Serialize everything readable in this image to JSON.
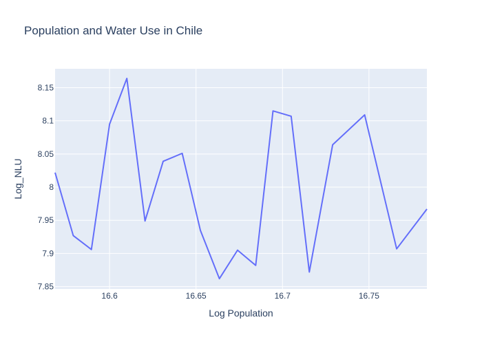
{
  "chart_data": {
    "type": "line",
    "title": "Population and Water Use in Chile",
    "xlabel": "Log Population",
    "ylabel": "Log_NLU",
    "xlim": [
      16.5685,
      16.7835
    ],
    "ylim": [
      7.8465,
      8.1785
    ],
    "x_ticks": [
      16.6,
      16.65,
      16.7,
      16.75
    ],
    "x_tick_labels": [
      "16.6",
      "16.65",
      "16.7",
      "16.75"
    ],
    "y_ticks": [
      7.85,
      7.9,
      7.95,
      8.0,
      8.05,
      8.1,
      8.15
    ],
    "y_tick_labels": [
      "7.85",
      "7.9",
      "7.95",
      "8",
      "8.05",
      "8.1",
      "8.15"
    ],
    "grid": true,
    "series": [
      {
        "color": "#636efa",
        "x": [
          16.5685,
          16.579,
          16.5895,
          16.6,
          16.61,
          16.6205,
          16.631,
          16.642,
          16.6525,
          16.6635,
          16.674,
          16.6845,
          16.6945,
          16.705,
          16.7155,
          16.729,
          16.7475,
          16.766,
          16.7835
        ],
        "y": [
          8.022,
          7.927,
          7.906,
          8.095,
          8.164,
          7.949,
          8.039,
          8.051,
          7.935,
          7.862,
          7.905,
          7.882,
          8.115,
          8.107,
          7.872,
          8.064,
          8.109,
          7.907,
          7.967
        ]
      }
    ]
  }
}
